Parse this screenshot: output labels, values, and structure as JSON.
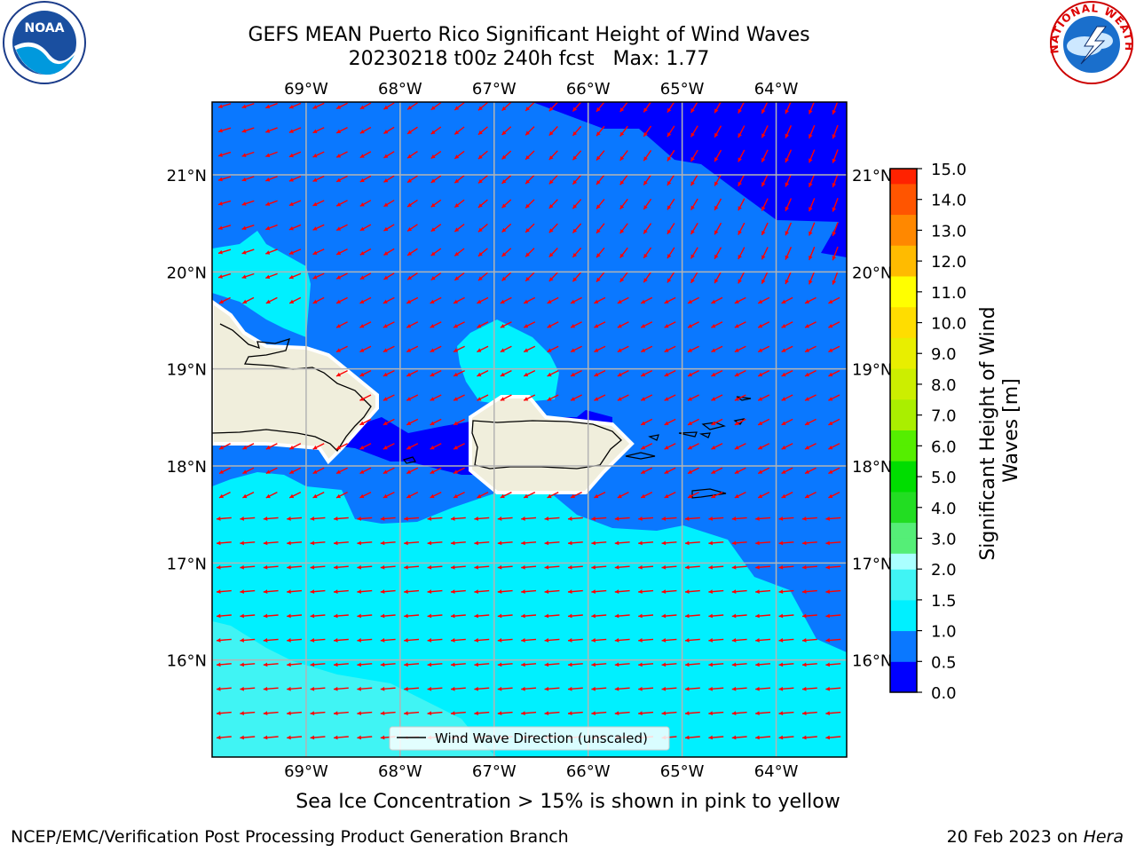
{
  "title": "GEFS MEAN Puerto Rico Significant Height of Wind Waves",
  "subtitle": "20230218 t00z 240h fcst   Max: 1.77",
  "map": {
    "lon_ticks": [
      "69°W",
      "68°W",
      "67°W",
      "66°W",
      "65°W",
      "64°W"
    ],
    "lat_ticks": [
      "21°N",
      "20°N",
      "19°N",
      "18°N",
      "17°N",
      "16°N"
    ],
    "lon_range": [
      -70.0,
      -63.25
    ],
    "lat_range": [
      15.0,
      21.75
    ],
    "grid": true,
    "legend": {
      "label": "Wind Wave Direction (unscaled)",
      "placement": "bottom-center"
    },
    "arrow_color": "#ff0000",
    "land_color": "#f0eedc"
  },
  "colorbar": {
    "label": "Significant Height of Wind Waves [m]",
    "ticks": [
      "15.0",
      "14.0",
      "13.0",
      "12.0",
      "11.0",
      "10.0",
      "9.0",
      "8.0",
      "7.0",
      "6.0",
      "5.0",
      "4.0",
      "3.0",
      "2.0",
      "1.5",
      "1.0",
      "0.5",
      "0.0"
    ],
    "colors": [
      "#0000ff",
      "#0a78ff",
      "#00f0ff",
      "#40f4f4",
      "#aaffff",
      "#55ee77",
      "#22dd22",
      "#00dd00",
      "#55ee00",
      "#aaee00",
      "#ccee00",
      "#e8ee00",
      "#ffdd00",
      "#ffff00",
      "#ffbb00",
      "#ff8800",
      "#ff5500",
      "#ff2200",
      "#ff0000"
    ]
  },
  "logos": {
    "left": "noaa-logo",
    "left_text": "NOAA",
    "right": "national-weather-service-logo",
    "right_text": "NATIONAL WEATHER SERVICE"
  },
  "note": "Sea Ice Concentration > 15% is shown in pink to yellow",
  "credit_left": "NCEP/EMC/Verification Post Processing Product Generation Branch",
  "credit_right_prefix": "20 Feb 2023 on ",
  "credit_right_host": "Hera"
}
